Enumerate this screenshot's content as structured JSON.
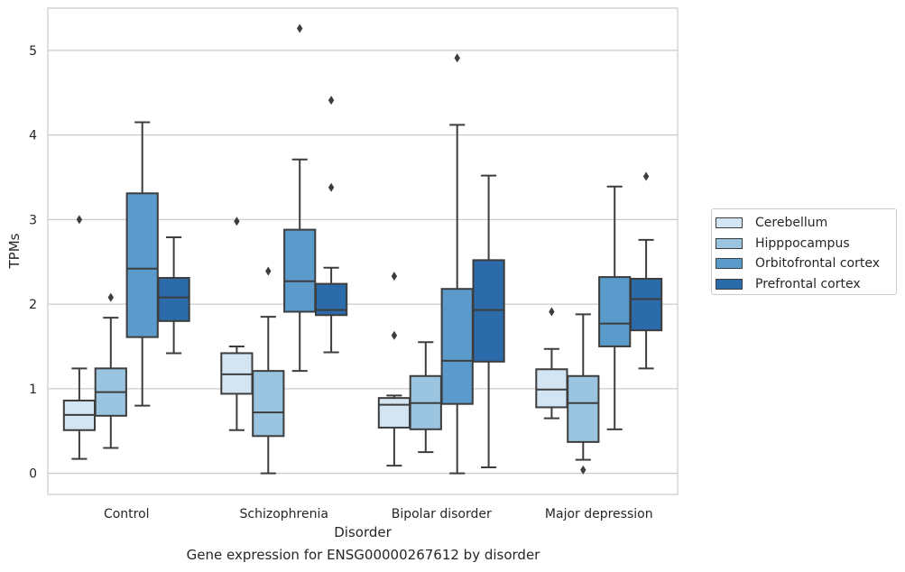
{
  "chart_data": {
    "type": "box",
    "title": "",
    "caption": "Gene expression for ENSG00000267612 by disorder",
    "xlabel": "Disorder",
    "ylabel": "TPMs",
    "ylim": [
      -0.25,
      5.5
    ],
    "yticks": [
      0,
      1,
      2,
      3,
      4,
      5
    ],
    "grid": "horizontal",
    "legend_position": "right",
    "categories": [
      "Control",
      "Schizophrenia",
      "Bipolar disorder",
      "Major depression"
    ],
    "series": [
      {
        "name": "Cerebellum",
        "color": "#d3e4f3",
        "boxes": [
          {
            "whisker_low": 0.17,
            "q1": 0.51,
            "median": 0.69,
            "q3": 0.86,
            "whisker_high": 1.24,
            "outliers": [
              3.0
            ]
          },
          {
            "whisker_low": 0.51,
            "q1": 0.94,
            "median": 1.17,
            "q3": 1.42,
            "whisker_high": 1.5,
            "outliers": [
              2.98
            ]
          },
          {
            "whisker_low": 0.09,
            "q1": 0.54,
            "median": 0.81,
            "q3": 0.89,
            "whisker_high": 0.92,
            "outliers": [
              2.33,
              1.63
            ]
          },
          {
            "whisker_low": 0.65,
            "q1": 0.78,
            "median": 0.99,
            "q3": 1.23,
            "whisker_high": 1.47,
            "outliers": [
              1.91
            ]
          }
        ]
      },
      {
        "name": "Hipppocampus",
        "color": "#9ac4df",
        "boxes": [
          {
            "whisker_low": 0.3,
            "q1": 0.68,
            "median": 0.96,
            "q3": 1.24,
            "whisker_high": 1.84,
            "outliers": [
              2.08
            ]
          },
          {
            "whisker_low": 0.0,
            "q1": 0.44,
            "median": 0.72,
            "q3": 1.21,
            "whisker_high": 1.85,
            "outliers": [
              2.39
            ]
          },
          {
            "whisker_low": 0.25,
            "q1": 0.52,
            "median": 0.83,
            "q3": 1.15,
            "whisker_high": 1.55,
            "outliers": []
          },
          {
            "whisker_low": 0.16,
            "q1": 0.37,
            "median": 0.83,
            "q3": 1.15,
            "whisker_high": 1.88,
            "outliers": [
              0.04
            ]
          }
        ]
      },
      {
        "name": "Orbitofrontal cortex",
        "color": "#5a9bcb",
        "boxes": [
          {
            "whisker_low": 0.8,
            "q1": 1.61,
            "median": 2.42,
            "q3": 3.31,
            "whisker_high": 4.15,
            "outliers": []
          },
          {
            "whisker_low": 1.21,
            "q1": 1.91,
            "median": 2.27,
            "q3": 2.88,
            "whisker_high": 3.71,
            "outliers": [
              5.26
            ]
          },
          {
            "whisker_low": 0.0,
            "q1": 0.82,
            "median": 1.33,
            "q3": 2.18,
            "whisker_high": 4.12,
            "outliers": [
              4.91
            ]
          },
          {
            "whisker_low": 0.52,
            "q1": 1.5,
            "median": 1.77,
            "q3": 2.32,
            "whisker_high": 3.39,
            "outliers": []
          }
        ]
      },
      {
        "name": "Prefrontal cortex",
        "color": "#2b6ba9",
        "boxes": [
          {
            "whisker_low": 1.42,
            "q1": 1.8,
            "median": 2.08,
            "q3": 2.31,
            "whisker_high": 2.79,
            "outliers": []
          },
          {
            "whisker_low": 1.43,
            "q1": 1.87,
            "median": 1.93,
            "q3": 2.24,
            "whisker_high": 2.43,
            "outliers": [
              4.41,
              3.38
            ]
          },
          {
            "whisker_low": 0.07,
            "q1": 1.32,
            "median": 1.93,
            "q3": 2.52,
            "whisker_high": 3.52,
            "outliers": []
          },
          {
            "whisker_low": 1.24,
            "q1": 1.69,
            "median": 2.06,
            "q3": 2.3,
            "whisker_high": 2.76,
            "outliers": [
              3.51
            ]
          }
        ]
      }
    ]
  }
}
